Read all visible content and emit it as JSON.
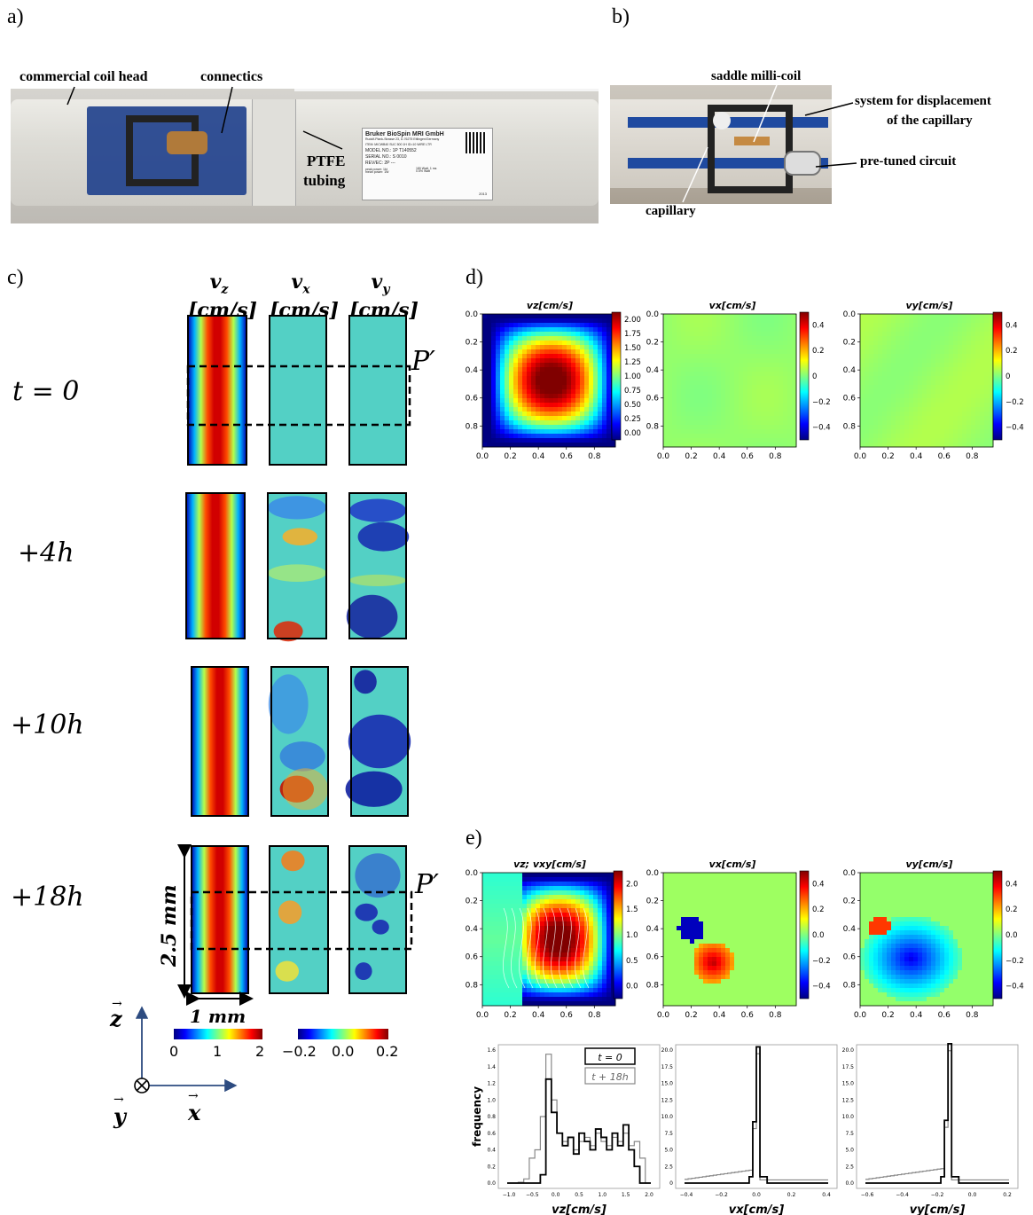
{
  "panels": {
    "a": "a)",
    "b": "b)",
    "c": "c)",
    "d": "d)",
    "e": "e)"
  },
  "photo_a": {
    "labels": {
      "coil_head": "commercial coil head",
      "connectics": "connectics",
      "ptfe": "PTFE",
      "tubing": "tubing"
    },
    "sticker": [
      "Bruker BioSpin MRI GmbH",
      "Rudolf-Plank-Strasse 23, D-76275 Ettlingen/Germany",
      "ITEM: MICWB40 SUC 500 1H ID=10 WIRE LTR",
      "MODEL NO.: 1P T140552",
      "SERIAL NO.: S 0010",
      "REV/EC: 2P ---",
      "peak power: 1kt",
      "180 Watt, 1 ms",
      "mean power: 1W",
      "0.5% Watt",
      "2013"
    ]
  },
  "photo_b": {
    "labels": {
      "saddle": "saddle milli-coil",
      "system1": "system for displacement",
      "system2": "of the capillary",
      "circuit": "pre-tuned circuit",
      "capillary": "capillary"
    }
  },
  "panel_c": {
    "col_headers": [
      {
        "sym": "v",
        "sub": "z",
        "unit": "[cm/s]"
      },
      {
        "sym": "v",
        "sub": "x",
        "unit": "[cm/s]"
      },
      {
        "sym": "v",
        "sub": "y",
        "unit": "[cm/s]"
      }
    ],
    "row_labels": [
      "t = 0",
      "+4h",
      "+10h",
      "+18h"
    ],
    "p_label": "P′",
    "length_label": "2.5 mm",
    "width_label": "1 mm",
    "colorbar_vz": {
      "ticks": [
        "0",
        "1",
        "2"
      ]
    },
    "colorbar_vxy": {
      "ticks": [
        "−0.2",
        "0.0",
        "0.2"
      ]
    },
    "axes": {
      "z": "z",
      "y": "y",
      "x": "x"
    }
  },
  "panel_d": {
    "titles": [
      "vz[cm/s]",
      "vx[cm/s]",
      "vy[cm/s]"
    ],
    "xticks": [
      "0.0",
      "0.2",
      "0.4",
      "0.6",
      "0.8"
    ],
    "yticks": [
      "0.0",
      "0.2",
      "0.4",
      "0.6",
      "0.8"
    ],
    "cb1": [
      "2.00",
      "1.75",
      "1.50",
      "1.25",
      "1.00",
      "0.75",
      "0.50",
      "0.25",
      "0.00"
    ],
    "cb2": [
      "0.4",
      "0.2",
      "0",
      "−0.2",
      "−0.4"
    ]
  },
  "panel_e": {
    "titles": [
      "vz; vxy[cm/s]",
      "vx[cm/s]",
      "vy[cm/s]"
    ],
    "cb1": [
      "2.0",
      "1.5",
      "1.0",
      "0.5",
      "0.0"
    ],
    "cb2": [
      "0.4",
      "0.2",
      "0.0",
      "−0.2",
      "−0.4"
    ],
    "histograms": {
      "ylabel": "frequency",
      "legend": [
        "t = 0",
        "t + 18h"
      ],
      "h1": {
        "xlabel": "vz[cm/s]",
        "xticks": [
          "−1.0",
          "−0.5",
          "0.0",
          "0.5",
          "1.0",
          "1.5",
          "2.0"
        ],
        "yticks": [
          "0.0",
          "0.2",
          "0.4",
          "0.6",
          "0.8",
          "1.0",
          "1.2",
          "1.4",
          "1.6"
        ]
      },
      "h2": {
        "xlabel": "vx[cm/s]",
        "xticks": [
          "−0.4",
          "−0.2",
          "0.0",
          "0.2",
          "0.4"
        ],
        "yticks": [
          "0",
          "2.5",
          "5.0",
          "7.5",
          "10.0",
          "12.5",
          "15.0",
          "17.5",
          "20.0"
        ]
      },
      "h3": {
        "xlabel": "vy[cm/s]",
        "xticks": [
          "−0.6",
          "−0.4",
          "−0.2",
          "0.0",
          "0.2"
        ],
        "yticks": [
          "0.0",
          "2.5",
          "5.0",
          "7.5",
          "10.0",
          "12.5",
          "15.0",
          "17.5",
          "20.0"
        ]
      }
    }
  }
}
